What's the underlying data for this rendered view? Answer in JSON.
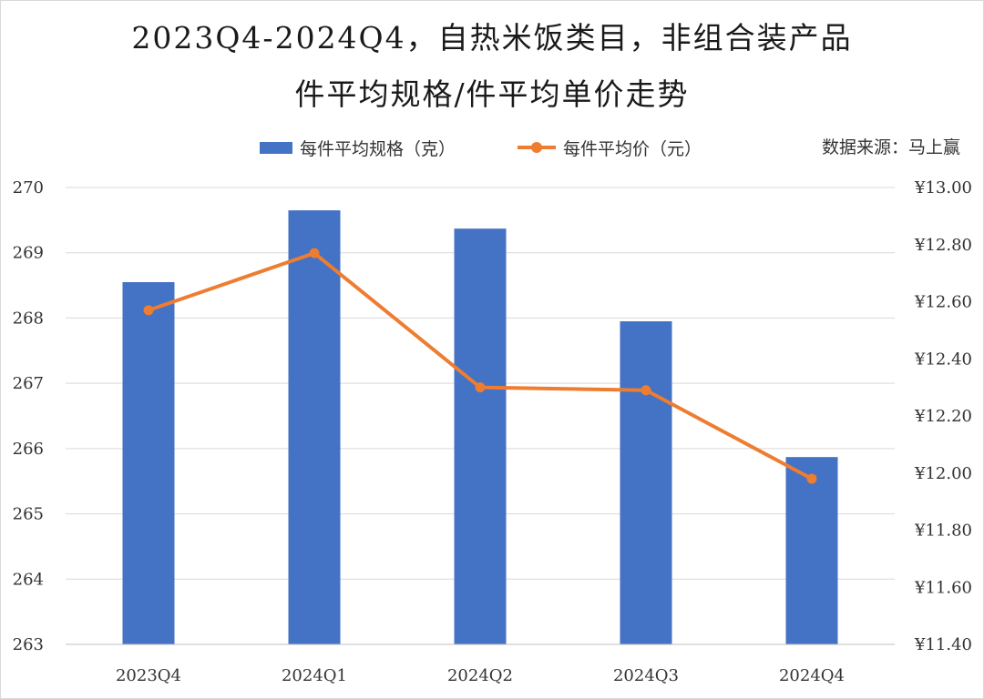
{
  "title_line1": "2023Q4-2024Q4，自热米饭类目，非组合装产品",
  "title_line2": "件平均规格/件平均单价走势",
  "source": "数据来源：马上赢",
  "chart_data": {
    "type": "bar",
    "categories": [
      "2023Q4",
      "2024Q1",
      "2024Q2",
      "2024Q3",
      "2024Q4"
    ],
    "series": [
      {
        "name": "每件平均规格（克）",
        "type": "bar",
        "axis": "left",
        "color": "#4472C4",
        "values": [
          268.55,
          269.65,
          269.37,
          267.95,
          265.87
        ]
      },
      {
        "name": "每件平均价（元）",
        "type": "line",
        "axis": "right",
        "color": "#ED7D31",
        "values": [
          12.57,
          12.77,
          12.3,
          12.29,
          11.98
        ]
      }
    ],
    "y_left": {
      "min": 263,
      "max": 270,
      "step": 1,
      "ticks": [
        "263",
        "264",
        "265",
        "266",
        "267",
        "268",
        "269",
        "270"
      ]
    },
    "y_right": {
      "min": 11.4,
      "max": 13.0,
      "step": 0.2,
      "ticks": [
        "¥11.40",
        "¥11.60",
        "¥11.80",
        "¥12.00",
        "¥12.20",
        "¥12.40",
        "¥12.60",
        "¥12.80",
        "¥13.00"
      ]
    },
    "grid": true,
    "legend_position": "top"
  }
}
